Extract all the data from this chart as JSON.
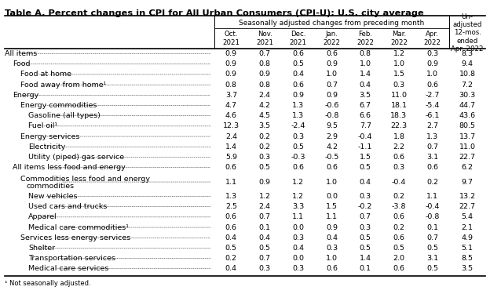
{
  "title": "Table A. Percent changes in CPI for All Urban Consumers (CPI-U): U.S. city average",
  "col_header_main": "Seasonally adjusted changes from preceding month",
  "col_header_unadj": "Un-\nadjusted\n12-mos.\nended\nApr. 2022",
  "col_months": [
    "Oct.\n2021",
    "Nov.\n2021",
    "Dec.\n2021",
    "Jan.\n2022",
    "Feb.\n2022",
    "Mar.\n2022",
    "Apr.\n2022"
  ],
  "footnote": "¹ Not seasonally adjusted.",
  "rows": [
    {
      "label": "All items",
      "dots": true,
      "indent": 0,
      "vals": [
        0.9,
        0.7,
        0.6,
        0.6,
        0.8,
        1.2,
        0.3,
        8.3
      ]
    },
    {
      "label": "Food",
      "dots": true,
      "indent": 1,
      "vals": [
        0.9,
        0.8,
        0.5,
        0.9,
        1.0,
        1.0,
        0.9,
        9.4
      ]
    },
    {
      "label": "Food at home",
      "dots": true,
      "indent": 2,
      "vals": [
        0.9,
        0.9,
        0.4,
        1.0,
        1.4,
        1.5,
        1.0,
        10.8
      ]
    },
    {
      "label": "Food away from home¹",
      "dots": true,
      "indent": 2,
      "vals": [
        0.8,
        0.8,
        0.6,
        0.7,
        0.4,
        0.3,
        0.6,
        7.2
      ]
    },
    {
      "label": "Energy",
      "dots": true,
      "indent": 1,
      "vals": [
        3.7,
        2.4,
        0.9,
        0.9,
        3.5,
        11.0,
        -2.7,
        30.3
      ]
    },
    {
      "label": "Energy commodities",
      "dots": true,
      "indent": 2,
      "vals": [
        4.7,
        4.2,
        1.3,
        -0.6,
        6.7,
        18.1,
        -5.4,
        44.7
      ]
    },
    {
      "label": "Gasoline (all types)",
      "dots": true,
      "indent": 3,
      "vals": [
        4.6,
        4.5,
        1.3,
        -0.8,
        6.6,
        18.3,
        -6.1,
        43.6
      ]
    },
    {
      "label": "Fuel oil¹",
      "dots": true,
      "indent": 3,
      "vals": [
        12.3,
        3.5,
        -2.4,
        9.5,
        7.7,
        22.3,
        2.7,
        80.5
      ]
    },
    {
      "label": "Energy services",
      "dots": true,
      "indent": 2,
      "vals": [
        2.4,
        0.2,
        0.3,
        2.9,
        -0.4,
        1.8,
        1.3,
        13.7
      ]
    },
    {
      "label": "Electricity",
      "dots": true,
      "indent": 3,
      "vals": [
        1.4,
        0.2,
        0.5,
        4.2,
        -1.1,
        2.2,
        0.7,
        11.0
      ]
    },
    {
      "label": "Utility (piped) gas service",
      "dots": true,
      "indent": 3,
      "vals": [
        5.9,
        0.3,
        -0.3,
        -0.5,
        1.5,
        0.6,
        3.1,
        22.7
      ]
    },
    {
      "label": "All items less food and energy",
      "dots": true,
      "indent": 1,
      "vals": [
        0.6,
        0.5,
        0.6,
        0.6,
        0.5,
        0.3,
        0.6,
        6.2
      ]
    },
    {
      "label": "Commodities less food and energy\n   commodities",
      "dots": true,
      "indent": 2,
      "vals": [
        1.1,
        0.9,
        1.2,
        1.0,
        0.4,
        -0.4,
        0.2,
        9.7
      ]
    },
    {
      "label": "New vehicles",
      "dots": true,
      "indent": 3,
      "vals": [
        1.3,
        1.2,
        1.2,
        0.0,
        0.3,
        0.2,
        1.1,
        13.2
      ]
    },
    {
      "label": "Used cars and trucks",
      "dots": true,
      "indent": 3,
      "vals": [
        2.5,
        2.4,
        3.3,
        1.5,
        -0.2,
        -3.8,
        -0.4,
        22.7
      ]
    },
    {
      "label": "Apparel",
      "dots": true,
      "indent": 3,
      "vals": [
        0.6,
        0.7,
        1.1,
        1.1,
        0.7,
        0.6,
        -0.8,
        5.4
      ]
    },
    {
      "label": "Medical care commodities¹",
      "dots": true,
      "indent": 3,
      "vals": [
        0.6,
        0.1,
        0.0,
        0.9,
        0.3,
        0.2,
        0.1,
        2.1
      ]
    },
    {
      "label": "Services less energy services",
      "dots": true,
      "indent": 2,
      "vals": [
        0.4,
        0.4,
        0.3,
        0.4,
        0.5,
        0.6,
        0.7,
        4.9
      ]
    },
    {
      "label": "Shelter",
      "dots": true,
      "indent": 3,
      "vals": [
        0.5,
        0.5,
        0.4,
        0.3,
        0.5,
        0.5,
        0.5,
        5.1
      ]
    },
    {
      "label": "Transportation services",
      "dots": true,
      "indent": 3,
      "vals": [
        0.2,
        0.7,
        0.0,
        1.0,
        1.4,
        2.0,
        3.1,
        8.5
      ]
    },
    {
      "label": "Medical care services",
      "dots": true,
      "indent": 3,
      "vals": [
        0.4,
        0.3,
        0.3,
        0.6,
        0.1,
        0.6,
        0.5,
        3.5
      ]
    }
  ],
  "bg_color": "#ffffff",
  "text_color": "#000000",
  "border_color": "#000000"
}
